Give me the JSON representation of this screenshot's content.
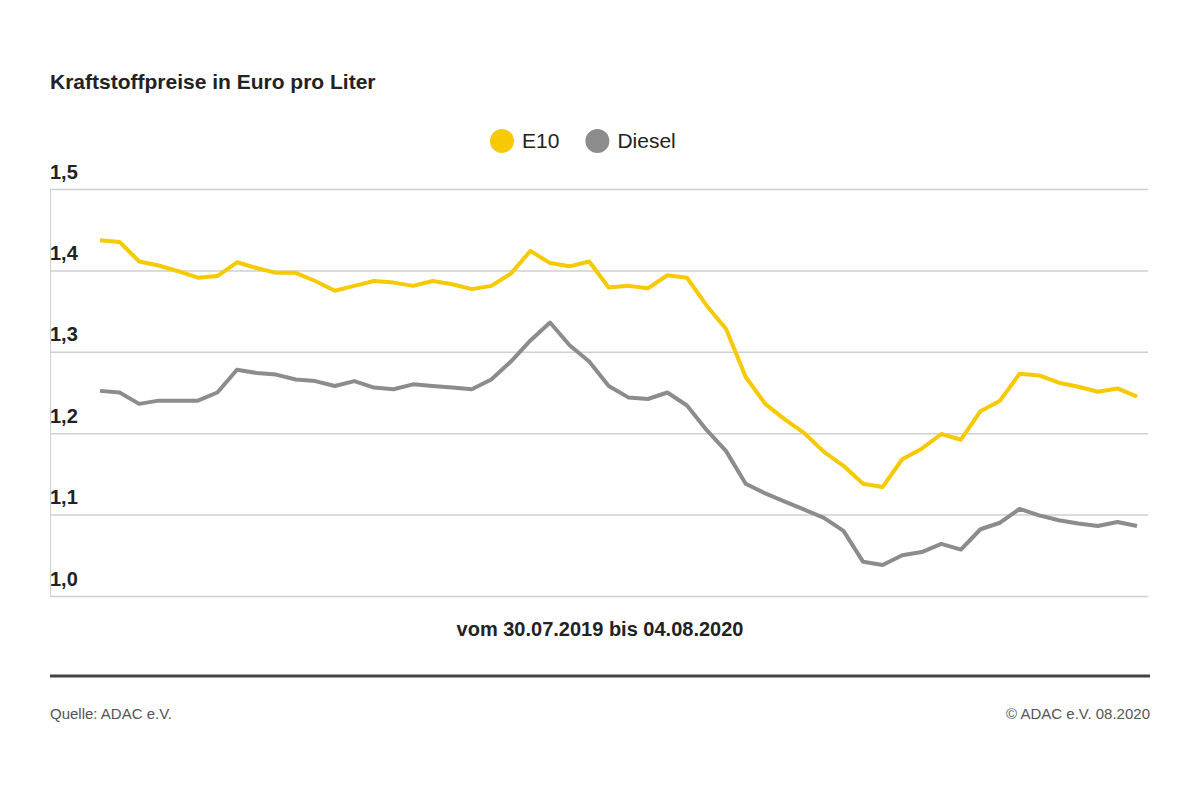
{
  "chart_data": {
    "type": "line",
    "title": "Kraftstoffpreise in Euro pro Liter",
    "x_label": "vom 30.07.2019 bis 04.08.2020",
    "source": "Quelle: ADAC e.V.",
    "credit": "© ADAC e.V. 08.2020",
    "categories": [
      null,
      null,
      null,
      null,
      null,
      null,
      null,
      null,
      null,
      null,
      null,
      null,
      null,
      null,
      null,
      null,
      null,
      null,
      null,
      null,
      null,
      null,
      null,
      null,
      null,
      null,
      null,
      null,
      null,
      null,
      null,
      null,
      null,
      null,
      null,
      null,
      null,
      null,
      null,
      null,
      null,
      null,
      null,
      null,
      null,
      null,
      null,
      null,
      null,
      null,
      null,
      null,
      null,
      null
    ],
    "series": [
      {
        "name": "E10",
        "color": "#f6c900",
        "values": [
          1.437,
          1.435,
          1.411,
          1.406,
          1.399,
          1.391,
          1.393,
          1.41,
          1.403,
          1.397,
          1.397,
          1.387,
          1.375,
          1.381,
          1.387,
          1.385,
          1.381,
          1.387,
          1.383,
          1.377,
          1.381,
          1.396,
          1.424,
          1.409,
          1.405,
          1.411,
          1.379,
          1.381,
          1.378,
          1.394,
          1.391,
          1.357,
          1.328,
          1.269,
          1.236,
          1.217,
          1.2,
          1.177,
          1.16,
          1.138,
          1.134,
          1.168,
          1.181,
          1.199,
          1.192,
          1.227,
          1.24,
          1.273,
          1.271,
          1.262,
          1.257,
          1.251,
          1.255,
          1.245
        ]
      },
      {
        "name": "Diesel",
        "color": "#8c8c8c",
        "values": [
          1.252,
          1.25,
          1.236,
          1.24,
          1.24,
          1.24,
          1.25,
          1.278,
          1.274,
          1.272,
          1.266,
          1.264,
          1.258,
          1.264,
          1.256,
          1.254,
          1.26,
          1.258,
          1.256,
          1.254,
          1.266,
          1.288,
          1.314,
          1.336,
          1.308,
          1.288,
          1.258,
          1.244,
          1.242,
          1.25,
          1.234,
          1.204,
          1.178,
          1.138,
          1.126,
          1.116,
          1.106,
          1.096,
          1.08,
          1.042,
          1.038,
          1.05,
          1.054,
          1.064,
          1.057,
          1.082,
          1.09,
          1.107,
          1.099,
          1.093,
          1.089,
          1.086,
          1.091,
          1.086
        ]
      }
    ],
    "ylim": [
      1.0,
      1.5
    ],
    "yticks": [
      {
        "value": 1.0,
        "label": "1,0"
      },
      {
        "value": 1.1,
        "label": "1,1"
      },
      {
        "value": 1.2,
        "label": "1,2"
      },
      {
        "value": 1.3,
        "label": "1,3"
      },
      {
        "value": 1.4,
        "label": "1,4"
      },
      {
        "value": 1.5,
        "label": "1,5"
      }
    ],
    "grid": true,
    "legend": "top",
    "tick_labels": "y"
  }
}
